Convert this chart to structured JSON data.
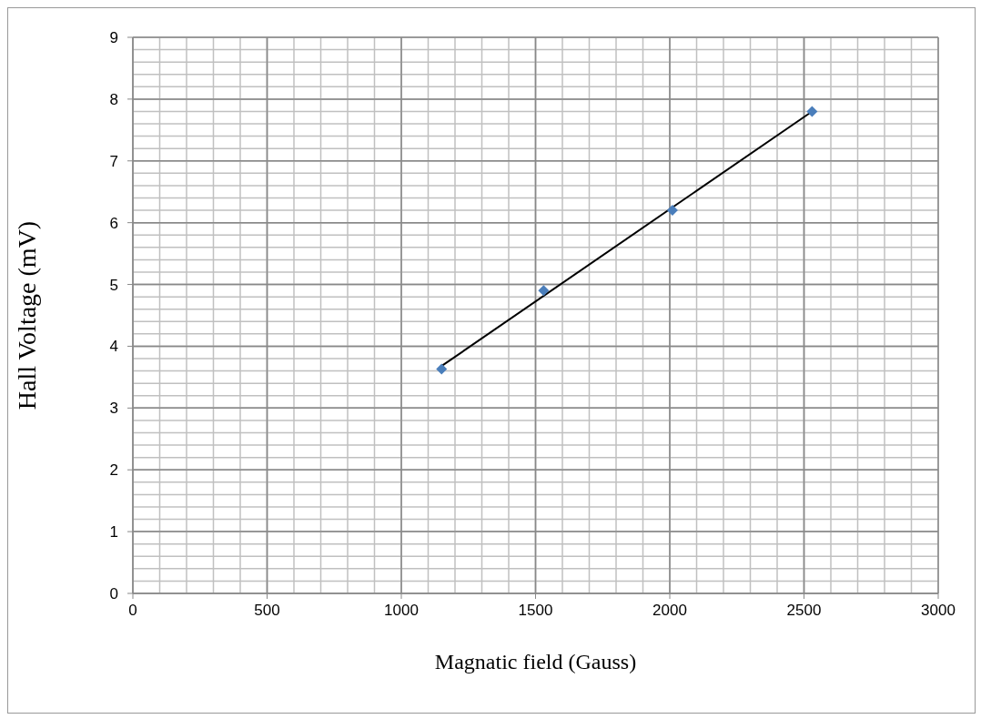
{
  "chart_data": {
    "type": "scatter",
    "xlabel": "Magnatic field (Gauss)",
    "ylabel": "Hall Voltage (mV)",
    "xlim": [
      0,
      3000
    ],
    "xticks": [
      0,
      500,
      1000,
      1500,
      2000,
      2500,
      3000
    ],
    "ylim": [
      0,
      9
    ],
    "yticks": [
      0,
      1,
      2,
      3,
      4,
      5,
      6,
      7,
      8,
      9
    ],
    "grid": true,
    "marker": "diamond",
    "series": [
      {
        "color": "#4a7ebb",
        "x": [
          1150,
          1530,
          2010,
          2530
        ],
        "values": [
          3.63,
          4.9,
          6.2,
          7.8
        ]
      },
      {
        "type": "line",
        "color": "#000000",
        "line_style": "solid",
        "marker": "none",
        "x": [
          1150,
          2530
        ],
        "values": [
          3.68,
          7.8
        ]
      }
    ]
  }
}
